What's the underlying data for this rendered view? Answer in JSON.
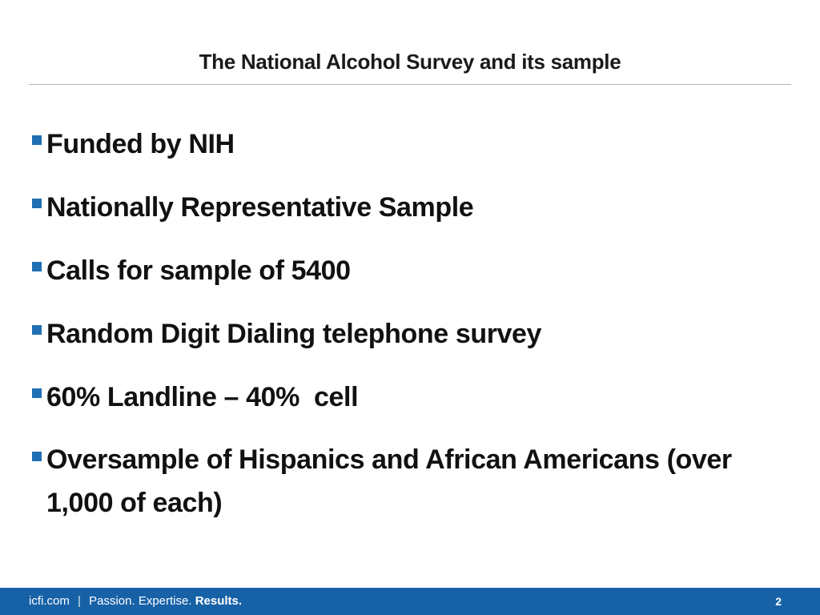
{
  "slide": {
    "title": "The National Alcohol Survey and its sample",
    "bullets": [
      "Funded by NIH",
      "Nationally Representative Sample",
      "Calls for sample of 5400",
      "Random Digit Dialing telephone survey",
      "60% Landline – 40%  cell",
      "Oversample of Hispanics and African Americans (over 1,000 of each)"
    ]
  },
  "footer": {
    "domain": "icfi.com",
    "separator": "|",
    "passion": "Passion.",
    "expertise": "Expertise.",
    "results": "Results.",
    "page_number": "2"
  },
  "colors": {
    "accent": "#1762a7",
    "bullet_marker": "#1f6fb4"
  }
}
